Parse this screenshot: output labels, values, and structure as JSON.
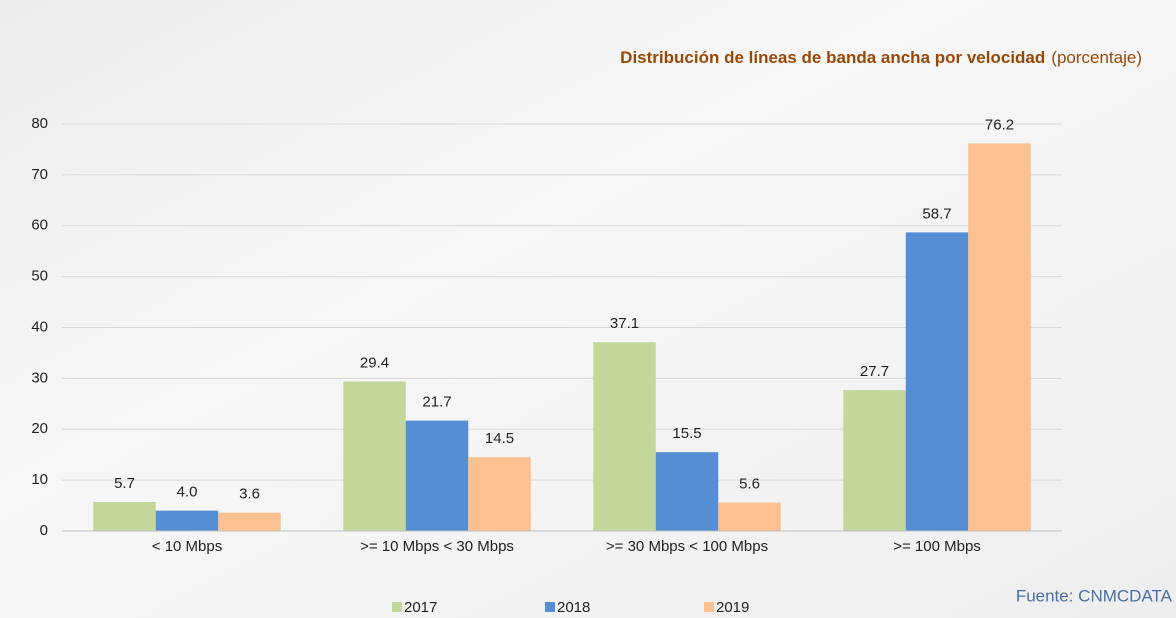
{
  "chart_data": {
    "type": "bar",
    "title": "Distribución de líneas de banda ancha por velocidad",
    "subtitle": "(porcentaje)",
    "source": "Fuente: CNMCDATA",
    "categories": [
      "< 10 Mbps",
      ">= 10 Mbps < 30 Mbps",
      ">= 30 Mbps < 100 Mbps",
      ">= 100 Mbps"
    ],
    "series": [
      {
        "name": "2017",
        "color": "#c4d79b",
        "values": [
          5.7,
          29.4,
          37.1,
          27.7
        ],
        "value_labels": [
          "5.7",
          "29.4",
          "37.1",
          "27.7"
        ]
      },
      {
        "name": "2018",
        "color": "#558ed5",
        "values": [
          4.0,
          21.7,
          15.5,
          58.7
        ],
        "value_labels": [
          "4.0",
          "21.7",
          "15.5",
          "58.7"
        ]
      },
      {
        "name": "2019",
        "color": "#fac090",
        "values": [
          3.6,
          14.5,
          5.6,
          76.2
        ],
        "value_labels": [
          "3.6",
          "14.5",
          "5.6",
          "76.2"
        ]
      }
    ],
    "ylim": [
      0,
      80
    ],
    "yticks": [
      0,
      10,
      20,
      30,
      40,
      50,
      60,
      70,
      80
    ],
    "grid": true,
    "legend": "bottom"
  }
}
